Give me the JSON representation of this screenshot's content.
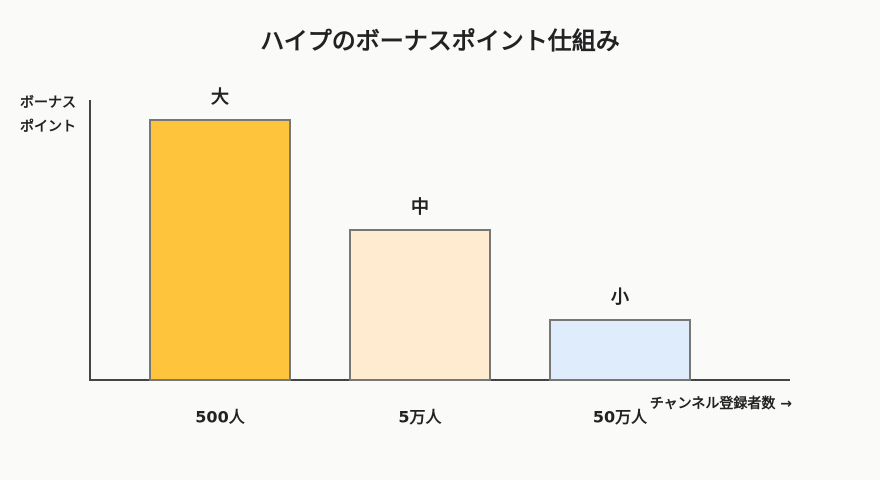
{
  "chart_data": {
    "type": "bar",
    "title": "ハイプのボーナスポイント仕組み",
    "y_label": [
      "ボーナス",
      "ポイント"
    ],
    "x_label": "チャンネル登録者数 →",
    "categories": [
      "500人",
      "5万人",
      "50万人"
    ],
    "values": [
      260,
      150,
      60
    ],
    "bar_labels": [
      "大",
      "中",
      "小"
    ],
    "colors": [
      "#fec43c",
      "#ffecd0",
      "#deecfb"
    ],
    "ylim": [
      0,
      280
    ]
  }
}
